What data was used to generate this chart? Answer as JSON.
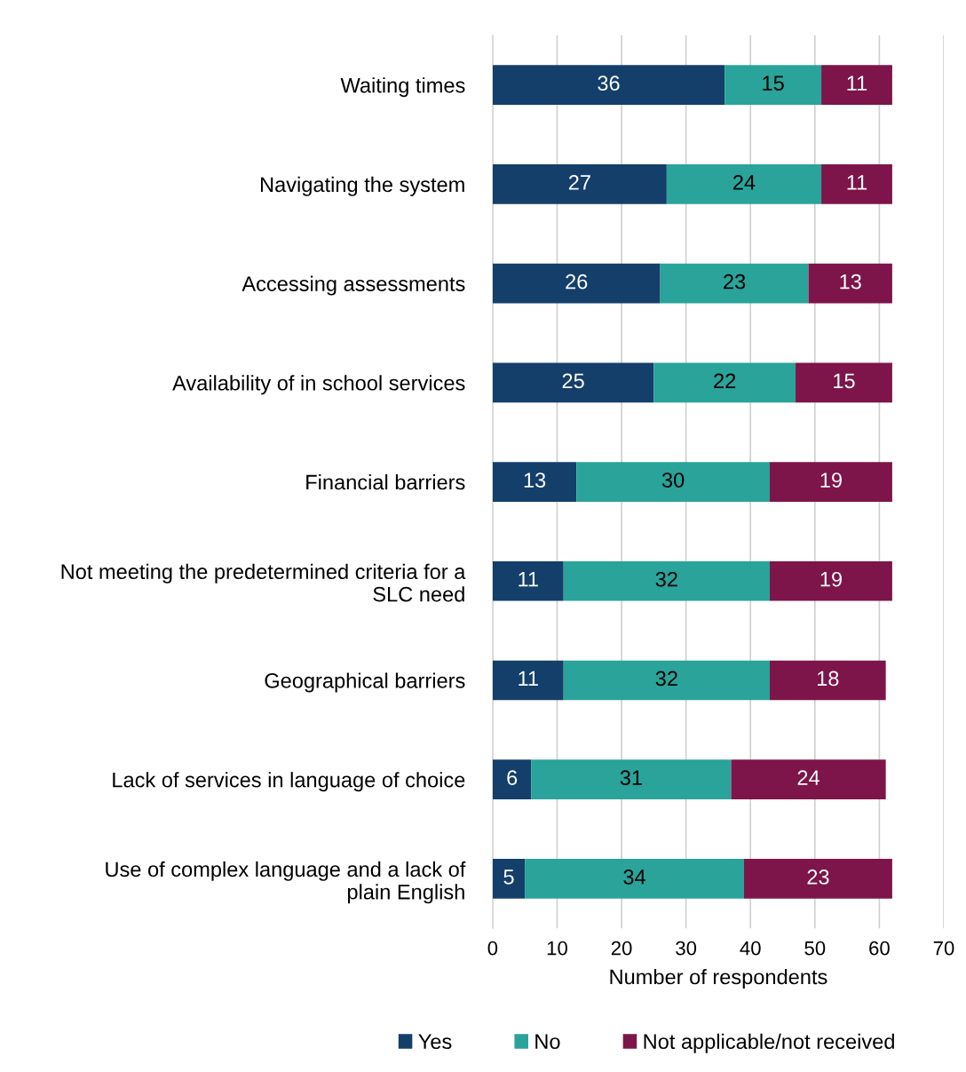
{
  "chart_data": {
    "type": "bar",
    "orientation": "horizontal",
    "stacked": true,
    "xlabel": "Number of respondents",
    "categories": [
      "Waiting times",
      "Navigating the system",
      "Accessing assessments",
      "Availability of in school services",
      "Financial barriers",
      "Not meeting the predetermined criteria for a\nSLC need",
      "Geographical barriers",
      "Lack of services in language of choice",
      "Use of complex language and a lack of\nplain English"
    ],
    "series": [
      {
        "name": "Yes",
        "color": "#143f6b",
        "values": [
          36,
          27,
          26,
          25,
          13,
          11,
          11,
          6,
          5
        ]
      },
      {
        "name": "No",
        "color": "#2aa39a",
        "values": [
          15,
          24,
          23,
          22,
          30,
          32,
          32,
          31,
          34
        ]
      },
      {
        "name": "Not applicable/not received",
        "color": "#7d154a",
        "values": [
          11,
          11,
          13,
          15,
          19,
          19,
          18,
          24,
          23
        ]
      }
    ],
    "xlim": [
      0,
      70
    ],
    "xticks": [
      0,
      10,
      20,
      30,
      40,
      50,
      60,
      70
    ],
    "grid": "x",
    "legend": "bottom",
    "data_labels": true
  }
}
